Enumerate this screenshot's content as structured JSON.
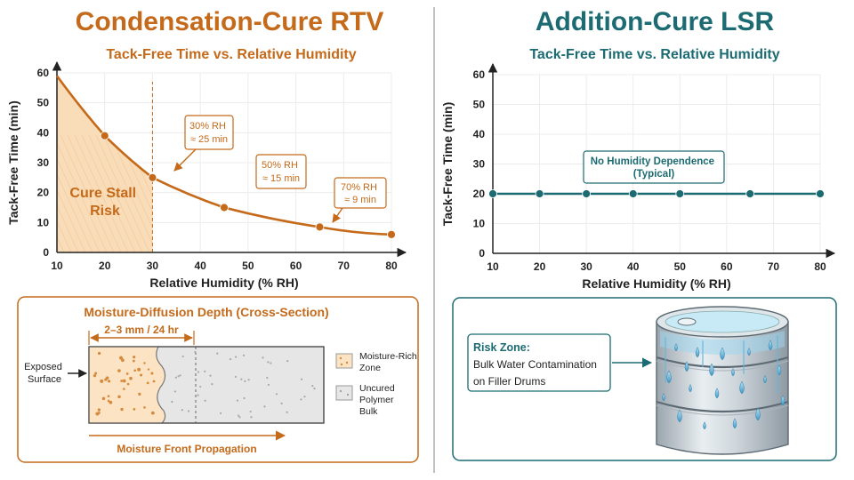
{
  "left_panel": {
    "title": "Condensation-Cure RTV",
    "chart_subtitle": "Tack-Free Time vs. Relative Humidity",
    "shaded_zone_label": [
      "Cure Stall",
      "Risk"
    ],
    "callouts": [
      {
        "lines": [
          "30% RH",
          "≈ 25 min"
        ]
      },
      {
        "lines": [
          "50% RH",
          "≈ 15 min"
        ]
      },
      {
        "lines": [
          "70% RH",
          "≈ 9 min"
        ]
      }
    ],
    "diffusion": {
      "title": "Moisture-Diffusion Depth (Cross-Section)",
      "depth_label": "2–3 mm / 24 hr",
      "exposed_label": [
        "Exposed",
        "Surface"
      ],
      "legend_wet": [
        "Moisture-Rich",
        "Zone"
      ],
      "legend_dry": [
        "Uncured",
        "Polymer",
        "Bulk"
      ],
      "front_label": "Moisture Front Propagation"
    }
  },
  "right_panel": {
    "title": "Addition-Cure LSR",
    "chart_subtitle": "Tack-Free Time vs. Relative Humidity",
    "annotation": [
      "No Humidity Dependence",
      "(Typical)"
    ],
    "risk": {
      "heading": "Risk Zone:",
      "lines": [
        "Bulk Water Contamination",
        "on Filler Drums"
      ]
    }
  },
  "colors": {
    "rtv": "#c46a1a",
    "lsr": "#1c6b72",
    "shade": "#f9dcb8",
    "cross_wet": "#fbe3c3",
    "cross_dry": "#e6e6e6"
  },
  "chart_data": [
    {
      "type": "line",
      "title": "Tack-Free Time vs. Relative Humidity",
      "xlabel": "Relative Humidity (% RH)",
      "ylabel": "Tack-Free Time (min)",
      "x_ticks": [
        10,
        20,
        30,
        40,
        50,
        60,
        70,
        80
      ],
      "y_ticks": [
        0,
        10,
        20,
        30,
        40,
        50,
        60
      ],
      "xlim": [
        10,
        80
      ],
      "ylim": [
        0,
        60
      ],
      "series": [
        {
          "x": [
            10,
            20,
            30,
            45,
            65,
            80
          ],
          "y": [
            59,
            39,
            25,
            15,
            8.5,
            6
          ]
        }
      ],
      "shaded_x_range": [
        10,
        30
      ],
      "marker_line_x": 30
    },
    {
      "type": "line",
      "title": "Tack-Free Time vs. Relative Humidity",
      "xlabel": "Relative Humidity (% RH)",
      "ylabel": "Tack-Free Time (min)",
      "x_ticks": [
        10,
        20,
        30,
        40,
        50,
        60,
        70,
        80
      ],
      "y_ticks": [
        0,
        10,
        20,
        30,
        40,
        50,
        60
      ],
      "xlim": [
        10,
        80
      ],
      "ylim": [
        0,
        60
      ],
      "series": [
        {
          "x": [
            10,
            20,
            30,
            40,
            50,
            65,
            80
          ],
          "y": [
            20,
            20,
            20,
            20,
            20,
            20,
            20
          ]
        }
      ]
    }
  ]
}
